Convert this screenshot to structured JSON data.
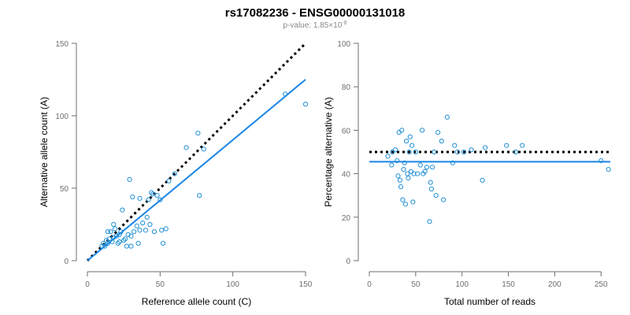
{
  "title": "rs17082236 - ENSG00000131018",
  "subtitle": {
    "prefix": "p-value: 1.85×10",
    "exponent": "-8"
  },
  "colors": {
    "points": "#1f8fd6",
    "fit": "#1a85e6",
    "reference": "#000000",
    "axis": "#6e6e6e"
  },
  "chart_data": [
    {
      "type": "scatter",
      "xlabel": "Reference allele count (C)",
      "ylabel": "Alternative allele count (A)",
      "xlim": [
        0,
        150
      ],
      "ylim": [
        0,
        150
      ],
      "xticks": [
        0,
        50,
        100,
        150
      ],
      "yticks": [
        0,
        50,
        100,
        150
      ],
      "grid": false,
      "points": [
        [
          10,
          10
        ],
        [
          11,
          12
        ],
        [
          12,
          10
        ],
        [
          13,
          14
        ],
        [
          14,
          12
        ],
        [
          15,
          15
        ],
        [
          16,
          20
        ],
        [
          17,
          13
        ],
        [
          18,
          16
        ],
        [
          19,
          22
        ],
        [
          20,
          17
        ],
        [
          21,
          12
        ],
        [
          22,
          18
        ],
        [
          23,
          20
        ],
        [
          24,
          35
        ],
        [
          25,
          14
        ],
        [
          26,
          15
        ],
        [
          27,
          10
        ],
        [
          28,
          18
        ],
        [
          29,
          56
        ],
        [
          30,
          17
        ],
        [
          31,
          44
        ],
        [
          32,
          20
        ],
        [
          34,
          24
        ],
        [
          35,
          12
        ],
        [
          36,
          43
        ],
        [
          38,
          26
        ],
        [
          40,
          21
        ],
        [
          41,
          30
        ],
        [
          42,
          42
        ],
        [
          43,
          25
        ],
        [
          44,
          47
        ],
        [
          46,
          20
        ],
        [
          48,
          45
        ],
        [
          50,
          42
        ],
        [
          51,
          21
        ],
        [
          52,
          12
        ],
        [
          54,
          22
        ],
        [
          56,
          55
        ],
        [
          60,
          60
        ],
        [
          68,
          78
        ],
        [
          76,
          88
        ],
        [
          77,
          45
        ],
        [
          80,
          77
        ],
        [
          136,
          115
        ],
        [
          150,
          108
        ],
        [
          18,
          25
        ],
        [
          22,
          13
        ],
        [
          30,
          10
        ],
        [
          14,
          20
        ],
        [
          36,
          21
        ],
        [
          45,
          46
        ]
      ],
      "fit_line": {
        "x": [
          0,
          150
        ],
        "y": [
          0,
          125
        ]
      },
      "reference_line": {
        "x": [
          0,
          150
        ],
        "y": [
          0,
          150
        ]
      }
    },
    {
      "type": "scatter",
      "xlabel": "Total number of reads",
      "ylabel": "Percentage alternative (A)",
      "xlim": [
        0,
        260
      ],
      "ylim": [
        0,
        100
      ],
      "xticks": [
        0,
        50,
        100,
        150,
        200,
        250
      ],
      "yticks": [
        0,
        20,
        40,
        60,
        80,
        100
      ],
      "grid": false,
      "points": [
        [
          20,
          48
        ],
        [
          24,
          44
        ],
        [
          25,
          50
        ],
        [
          28,
          51
        ],
        [
          30,
          46
        ],
        [
          31,
          39
        ],
        [
          32,
          59
        ],
        [
          33,
          37
        ],
        [
          34,
          34
        ],
        [
          35,
          60
        ],
        [
          36,
          28
        ],
        [
          37,
          42
        ],
        [
          38,
          45
        ],
        [
          39,
          26
        ],
        [
          40,
          55
        ],
        [
          41,
          40
        ],
        [
          42,
          38
        ],
        [
          43,
          50
        ],
        [
          44,
          57
        ],
        [
          45,
          41
        ],
        [
          46,
          53
        ],
        [
          47,
          27
        ],
        [
          48,
          40
        ],
        [
          50,
          50
        ],
        [
          52,
          40
        ],
        [
          55,
          44
        ],
        [
          57,
          60
        ],
        [
          60,
          41
        ],
        [
          62,
          43
        ],
        [
          65,
          18
        ],
        [
          66,
          36
        ],
        [
          67,
          33
        ],
        [
          68,
          43
        ],
        [
          72,
          30
        ],
        [
          74,
          59
        ],
        [
          78,
          55
        ],
        [
          80,
          28
        ],
        [
          84,
          66
        ],
        [
          90,
          45
        ],
        [
          92,
          53
        ],
        [
          95,
          50
        ],
        [
          102,
          50
        ],
        [
          110,
          51
        ],
        [
          122,
          37
        ],
        [
          125,
          52
        ],
        [
          148,
          53
        ],
        [
          158,
          50
        ],
        [
          165,
          53
        ],
        [
          250,
          46
        ],
        [
          258,
          42
        ],
        [
          58,
          40
        ],
        [
          70,
          50
        ]
      ],
      "fit_line": {
        "x": [
          0,
          260
        ],
        "y": [
          45.5,
          45.5
        ]
      },
      "reference_line": {
        "x": [
          0,
          260
        ],
        "y": [
          50,
          50
        ]
      }
    }
  ]
}
